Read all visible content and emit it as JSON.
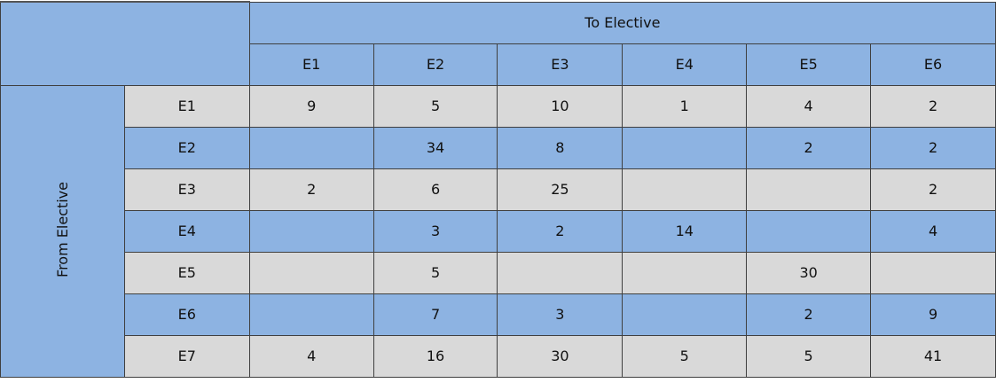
{
  "colors": {
    "header_blue": "#8db3e2",
    "row_gray": "#d9d9d9",
    "border": "#3f3f3f"
  },
  "to_label": "To Elective",
  "from_label": "From Elective",
  "columns": [
    "E1",
    "E2",
    "E3",
    "E4",
    "E5",
    "E6"
  ],
  "rows": [
    {
      "label": "E1",
      "values": [
        "9",
        "5",
        "10",
        "1",
        "4",
        "2"
      ]
    },
    {
      "label": "E2",
      "values": [
        "",
        "34",
        "8",
        "",
        "2",
        "2"
      ]
    },
    {
      "label": "E3",
      "values": [
        "2",
        "6",
        "25",
        "",
        "",
        "2"
      ]
    },
    {
      "label": "E4",
      "values": [
        "",
        "3",
        "2",
        "14",
        "",
        "4"
      ]
    },
    {
      "label": "E5",
      "values": [
        "",
        "5",
        "",
        "",
        "30",
        ""
      ]
    },
    {
      "label": "E6",
      "values": [
        "",
        "7",
        "3",
        "",
        "2",
        "9"
      ]
    },
    {
      "label": "E7",
      "values": [
        "4",
        "16",
        "30",
        "5",
        "5",
        "41"
      ]
    }
  ]
}
